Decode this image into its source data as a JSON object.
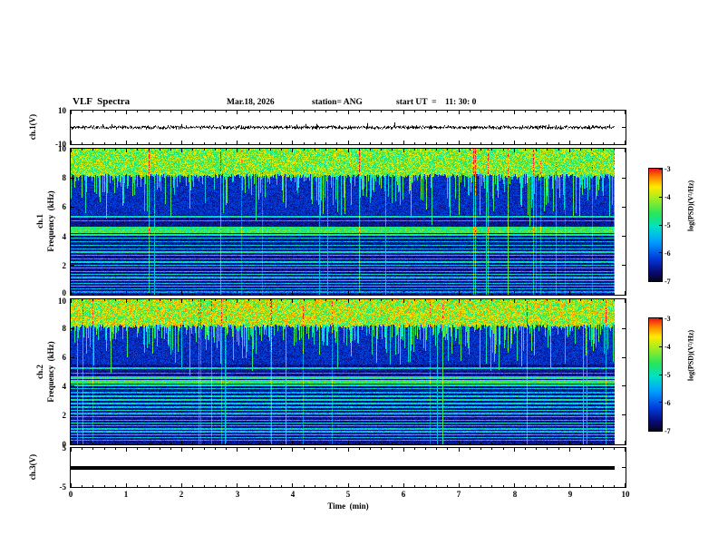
{
  "header": {
    "title": "VLF  Spectra",
    "date": "Mar.18, 2026",
    "station": "station= ANG",
    "start_ut": "start UT  =    11: 30: 0"
  },
  "chart_data": {
    "type": "heatmap",
    "title": "VLF Spectra",
    "date": "Mar.18, 2026",
    "station": "ANG",
    "start_ut": "11:30:0",
    "data_end_min": 9.8,
    "xaxis": {
      "label": "Time  (min)",
      "min": 0,
      "max": 10,
      "ticks": [
        "0",
        "1",
        "2",
        "3",
        "4",
        "5",
        "6",
        "7",
        "8",
        "9",
        "10"
      ]
    },
    "panel_ch1_wave": {
      "ylabel": "ch.1(V)",
      "ymin": -10,
      "ymax": 10,
      "ytick_top": "10",
      "ytick_bottom": "-10",
      "seed": 99,
      "noise_amplitude_v": 1.2,
      "description": "broadband noise waveform centered on 0 V"
    },
    "panel_ch1_spec": {
      "ylabel_channel": "ch.1",
      "ylabel_axis": "Frequency  (kHz)",
      "ymin": 0,
      "ymax": 10,
      "yticks": [
        "10",
        "8",
        "6",
        "4",
        "2",
        "0"
      ],
      "seed": 12345,
      "top_khz": 8.3,
      "top_base": 0.52,
      "top_noise": 0.33,
      "bands": [
        [
          5.35,
          0.06,
          0.48
        ],
        [
          5.1,
          0.04,
          0.38
        ],
        [
          4.62,
          0.09,
          0.58
        ],
        [
          4.38,
          0.1,
          0.62
        ],
        [
          4.15,
          0.07,
          0.55
        ],
        [
          3.92,
          0.05,
          0.45
        ],
        [
          3.65,
          0.04,
          0.35
        ],
        [
          3.42,
          0.04,
          0.42
        ],
        [
          3.18,
          0.04,
          0.38
        ],
        [
          2.95,
          0.05,
          0.48
        ],
        [
          2.72,
          0.04,
          0.42
        ],
        [
          2.5,
          0.04,
          0.38
        ],
        [
          2.28,
          0.05,
          0.46
        ],
        [
          2.05,
          0.04,
          0.4
        ],
        [
          1.85,
          0.04,
          0.44
        ],
        [
          1.62,
          0.04,
          0.4
        ],
        [
          1.42,
          0.04,
          0.46
        ],
        [
          1.22,
          0.04,
          0.4
        ],
        [
          1.0,
          0.04,
          0.44
        ],
        [
          0.8,
          0.04,
          0.4
        ],
        [
          0.6,
          0.04,
          0.44
        ],
        [
          0.42,
          0.04,
          0.38
        ],
        [
          0.22,
          0.04,
          0.34
        ]
      ]
    },
    "panel_ch2_spec": {
      "ylabel_channel": "ch.2",
      "ylabel_axis": "Frequency  (kHz)",
      "ymin": 0,
      "ymax": 10,
      "yticks": [
        "10",
        "8",
        "6",
        "4",
        "2",
        "0"
      ],
      "seed": 54321,
      "top_khz": 8.3,
      "top_base": 0.55,
      "top_noise": 0.38,
      "bands": [
        [
          5.3,
          0.05,
          0.44
        ],
        [
          4.95,
          0.04,
          0.36
        ],
        [
          4.6,
          0.09,
          0.56
        ],
        [
          4.35,
          0.1,
          0.6
        ],
        [
          4.12,
          0.06,
          0.52
        ],
        [
          3.88,
          0.05,
          0.42
        ],
        [
          3.6,
          0.04,
          0.36
        ],
        [
          3.35,
          0.05,
          0.44
        ],
        [
          3.1,
          0.06,
          0.5
        ],
        [
          2.85,
          0.05,
          0.44
        ],
        [
          2.6,
          0.04,
          0.4
        ],
        [
          2.38,
          0.05,
          0.46
        ],
        [
          2.15,
          0.04,
          0.4
        ],
        [
          1.92,
          0.04,
          0.44
        ],
        [
          1.7,
          0.04,
          0.4
        ],
        [
          1.5,
          0.04,
          0.46
        ],
        [
          1.3,
          0.04,
          0.4
        ],
        [
          1.1,
          0.04,
          0.44
        ],
        [
          0.9,
          0.04,
          0.4
        ],
        [
          0.7,
          0.04,
          0.44
        ],
        [
          0.5,
          0.04,
          0.4
        ],
        [
          0.3,
          0.04,
          0.36
        ]
      ]
    },
    "panel_ch3_wave": {
      "ylabel": "ch.3(V)",
      "ymin": -5,
      "ymax": 5,
      "ytick_top": "5",
      "ytick_bottom": "-5",
      "value": 0,
      "description": "constant 0 V flat trace"
    },
    "colorbar": {
      "label": "log(PSD)(V²/Hz)",
      "max": -3,
      "min": -7,
      "ticks": [
        "-3",
        "-4",
        "-5",
        "-6",
        "-7"
      ]
    },
    "colormap_stops": [
      [
        0,
        [
          5,
          5,
          30
        ]
      ],
      [
        0.08,
        [
          10,
          10,
          120
        ]
      ],
      [
        0.2,
        [
          0,
          60,
          220
        ]
      ],
      [
        0.35,
        [
          0,
          160,
          255
        ]
      ],
      [
        0.48,
        [
          0,
          225,
          200
        ]
      ],
      [
        0.6,
        [
          40,
          230,
          90
        ]
      ],
      [
        0.72,
        [
          150,
          235,
          40
        ]
      ],
      [
        0.84,
        [
          255,
          235,
          0
        ]
      ],
      [
        0.93,
        [
          255,
          130,
          0
        ]
      ],
      [
        1,
        [
          235,
          25,
          25
        ]
      ]
    ]
  }
}
